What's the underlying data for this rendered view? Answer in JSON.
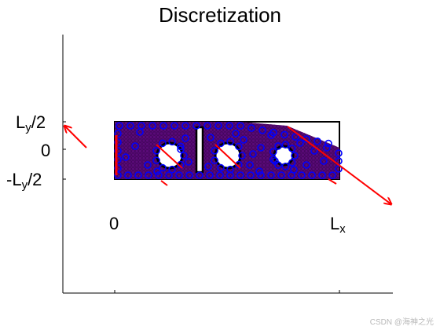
{
  "title": "Discretization",
  "ylabels": {
    "top": {
      "main": "L",
      "sub": "y",
      "suffix": "/2"
    },
    "mid": "0",
    "bottom": {
      "prefix": "-L",
      "sub": "y",
      "suffix": "/2"
    }
  },
  "xlabels": {
    "left": "0",
    "right": {
      "main": "L",
      "sub": "x"
    }
  },
  "watermark": "CSDN @海神之光",
  "colors": {
    "body": "#5a0a78",
    "nodes": "#0000ff",
    "arrows": "#ff0000",
    "outline": "#000000"
  }
}
